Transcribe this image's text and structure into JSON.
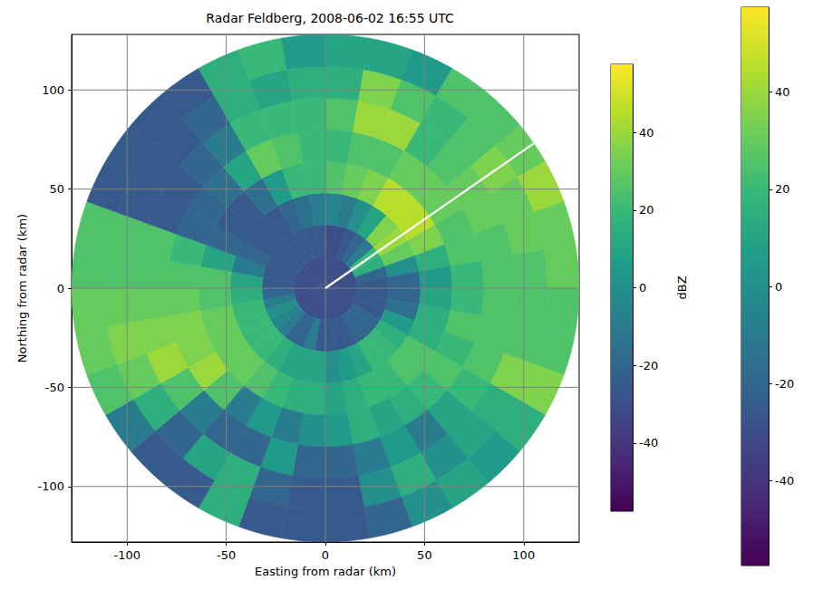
{
  "chart_data": {
    "type": "heatmap",
    "title": "Radar Feldberg, 2008-06-02 16:55 UTC",
    "x_label": "Easting from radar (km)",
    "y_label": "Northing from radar (km)",
    "xlim": [
      -128,
      128
    ],
    "ylim": [
      -128,
      128
    ],
    "xticks": [
      -100,
      -50,
      0,
      50,
      100
    ],
    "yticks": [
      -100,
      -50,
      0,
      50,
      100
    ],
    "grid": true,
    "colors": [
      "#440154",
      "#482878",
      "#3e4989",
      "#31688e",
      "#26828e",
      "#1f9e89",
      "#35b779",
      "#6ece58",
      "#b5de2b",
      "#fde725"
    ],
    "cells": {
      "azimuth_bins": [
        0,
        10,
        20,
        30,
        40,
        50,
        60,
        70,
        80,
        90,
        100,
        110,
        120,
        130,
        140,
        150,
        160,
        170,
        180,
        190,
        200,
        210,
        220,
        230,
        240,
        250,
        260,
        270,
        280,
        290,
        300,
        310,
        320,
        330,
        340,
        350,
        360
      ],
      "range_bins": [
        0,
        16,
        32,
        48,
        64,
        80,
        96,
        112,
        128
      ],
      "values": [
        [
          -30,
          -30,
          -5,
          25,
          20,
          25,
          15,
          10
        ],
        [
          -30,
          -30,
          -10,
          30,
          25,
          40,
          35,
          10
        ],
        [
          -30,
          -25,
          0,
          35,
          25,
          40,
          25,
          5
        ],
        [
          -30,
          -20,
          10,
          45,
          30,
          20,
          20,
          25
        ],
        [
          -30,
          -10,
          35,
          45,
          30,
          25,
          25,
          25
        ],
        [
          -30,
          20,
          40,
          45,
          30,
          30,
          35,
          30
        ],
        [
          -30,
          15,
          30,
          35,
          25,
          30,
          30,
          40
        ],
        [
          -30,
          -20,
          0,
          15,
          25,
          25,
          30,
          30
        ],
        [
          -30,
          -25,
          -20,
          5,
          20,
          25,
          25,
          30
        ],
        [
          -30,
          -25,
          -20,
          10,
          20,
          25,
          25,
          25
        ],
        [
          -30,
          -25,
          -15,
          15,
          25,
          25,
          25,
          25
        ],
        [
          -30,
          -25,
          5,
          15,
          20,
          25,
          35,
          35
        ],
        [
          -30,
          -20,
          15,
          25,
          25,
          20,
          15,
          15
        ],
        [
          -30,
          -20,
          20,
          25,
          20,
          10,
          10,
          5
        ],
        [
          -30,
          -20,
          20,
          20,
          15,
          -10,
          0,
          10
        ],
        [
          -30,
          -25,
          10,
          20,
          10,
          5,
          15,
          0
        ],
        [
          -30,
          -25,
          5,
          15,
          15,
          -10,
          0,
          -20
        ],
        [
          -30,
          -25,
          0,
          10,
          5,
          -20,
          -25,
          -25
        ],
        [
          -30,
          -25,
          10,
          15,
          0,
          -20,
          -25,
          -25
        ],
        [
          -30,
          -10,
          10,
          15,
          -10,
          5,
          -20,
          -25
        ],
        [
          -30,
          -20,
          10,
          20,
          5,
          -20,
          15,
          15
        ],
        [
          -30,
          -20,
          15,
          25,
          -10,
          -20,
          10,
          -25
        ],
        [
          -30,
          -10,
          20,
          30,
          25,
          -10,
          -20,
          -25
        ],
        [
          -30,
          -5,
          20,
          30,
          40,
          25,
          15,
          -10
        ],
        [
          -30,
          0,
          20,
          30,
          35,
          40,
          30,
          25
        ],
        [
          -30,
          -10,
          20,
          30,
          35,
          35,
          35,
          30
        ],
        [
          -30,
          -20,
          15,
          25,
          30,
          30,
          30,
          30
        ],
        [
          -30,
          -25,
          10,
          25,
          25,
          25,
          25,
          25
        ],
        [
          -30,
          -25,
          -10,
          10,
          20,
          25,
          25,
          25
        ],
        [
          -30,
          -25,
          -20,
          -20,
          -20,
          -25,
          -25,
          -25
        ],
        [
          -30,
          -25,
          -25,
          -25,
          -20,
          -25,
          -25,
          -25
        ],
        [
          -30,
          -25,
          -25,
          -25,
          -15,
          -20,
          -25,
          -25
        ],
        [
          -30,
          -25,
          -25,
          -15,
          10,
          -10,
          -20,
          -25
        ],
        [
          -30,
          -25,
          -20,
          5,
          30,
          20,
          15,
          15
        ],
        [
          -30,
          -25,
          -15,
          20,
          25,
          20,
          10,
          20
        ],
        [
          -30,
          -25,
          -10,
          20,
          20,
          20,
          15,
          5
        ]
      ]
    },
    "colorbars": [
      {
        "label": "dBZ",
        "range": [
          -57.5,
          57.5
        ],
        "ticks": [
          -40,
          -20,
          0,
          20,
          40
        ]
      },
      {
        "range": [
          -57.5,
          57.5
        ],
        "ticks": [
          -40,
          -20,
          0,
          20,
          40
        ]
      }
    ],
    "line": {
      "x": [
        0,
        105
      ],
      "y": [
        0,
        73
      ],
      "color": "#ffffff"
    }
  }
}
